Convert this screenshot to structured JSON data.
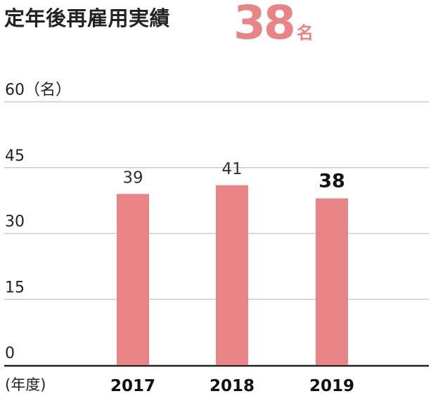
{
  "header": {
    "title": "定年後再雇用実績",
    "headline_value": "38",
    "headline_unit": "名"
  },
  "colors": {
    "bar": "#e88386",
    "accent": "#e88386",
    "grid": "#cccccc",
    "axis": "#222222"
  },
  "chart_data": {
    "type": "bar",
    "categories": [
      "2017",
      "2018",
      "2019"
    ],
    "values": [
      39,
      41,
      38
    ],
    "value_labels": [
      "39",
      "41",
      "38"
    ],
    "highlight_index": 2,
    "ylim": [
      0,
      60
    ],
    "yticks": [
      0,
      15,
      30,
      45,
      60
    ],
    "ytick_labels": [
      "0",
      "15",
      "30",
      "45",
      "60"
    ],
    "ylabel": "（名）",
    "xlabel": "(年度)",
    "grid": true
  }
}
